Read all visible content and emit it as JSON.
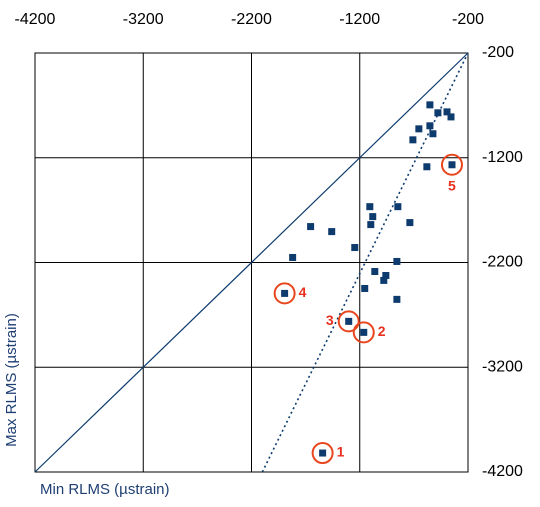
{
  "chart_data": {
    "type": "scatter",
    "x_label": "Min RLMS (µstrain)",
    "y_label": "Max RLMS (µstrain)",
    "xlim": [
      -4200,
      -200
    ],
    "ylim": [
      -4200,
      -200
    ],
    "xticks": [
      -4200,
      -3200,
      -2200,
      -1200,
      -200
    ],
    "yticks": [
      -200,
      -1200,
      -2200,
      -3200,
      -4200
    ],
    "grid": true,
    "series": [
      {
        "color": "#0d3b6e",
        "x": [
          -552,
          -478,
          -394,
          -654,
          -552,
          -709,
          -524,
          -357,
          -580,
          -348,
          -848,
          -1107,
          -1080,
          -1098,
          -737,
          -1654,
          -1459,
          -1246,
          -1820,
          -857,
          -1061,
          -959,
          -978,
          -1154,
          -857,
          -1894,
          -1302,
          -1163,
          -1543
        ],
        "values": [
          -695,
          -771,
          -762,
          -924,
          -895,
          -1029,
          -971,
          -810,
          -1286,
          -1267,
          -1667,
          -1667,
          -1762,
          -1838,
          -1819,
          -1857,
          -1905,
          -2057,
          -2152,
          -2190,
          -2286,
          -2324,
          -2371,
          -2448,
          -2552,
          -2495,
          -2762,
          -2867,
          -4019
        ]
      }
    ],
    "identity_line": {
      "x": [
        -4200,
        -200
      ],
      "y": [
        -4200,
        -200
      ]
    },
    "trendline": {
      "x": [
        -2100,
        -200
      ],
      "y": [
        -4200,
        -200
      ]
    },
    "annotations": [
      {
        "label": "1",
        "x": -1543,
        "y": -4019
      },
      {
        "label": "2",
        "x": -1163,
        "y": -2867
      },
      {
        "label": "3",
        "x": -1302,
        "y": -2762
      },
      {
        "label": "4",
        "x": -1894,
        "y": -2495
      },
      {
        "label": "5",
        "x": -348,
        "y": -1267
      }
    ]
  }
}
